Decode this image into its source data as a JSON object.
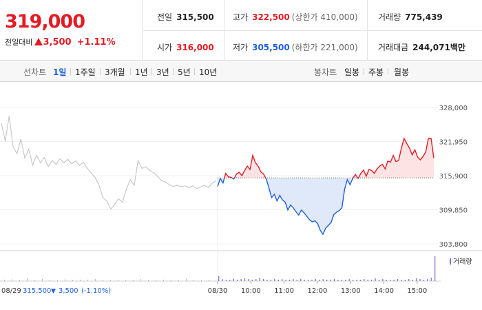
{
  "summary": {
    "price": "319,000",
    "change_label": "전일대비",
    "change_amount": "3,500",
    "change_pct": "+1.11%"
  },
  "stats": {
    "prev_close": {
      "label": "전일",
      "value": "315,500"
    },
    "high": {
      "label": "고가",
      "value": "322,500",
      "limit": "(상한가 410,000)"
    },
    "volume": {
      "label": "거래량",
      "value": "775,439"
    },
    "open": {
      "label": "시가",
      "value": "316,000"
    },
    "low": {
      "label": "저가",
      "value": "305,500",
      "limit": "(하한가 221,000)"
    },
    "trade_value": {
      "label": "거래대금",
      "value": "244,071",
      "unit": "백만"
    }
  },
  "tabs": {
    "line_chart_label": "선차트",
    "ranges": [
      "1일",
      "1주일",
      "3개월",
      "1년",
      "3년",
      "5년",
      "10년"
    ],
    "active_range": "1일",
    "candle_chart_label": "봉차트",
    "candles": [
      "일봉",
      "주봉",
      "월봉"
    ]
  },
  "chart_data": {
    "type": "line",
    "y_ticks": [
      "328,000",
      "321,950",
      "315,900",
      "309,850",
      "303,800"
    ],
    "ylim": [
      303800,
      328000
    ],
    "baseline": 315500,
    "x_ticks": [
      "08/30",
      "10:00",
      "11:00",
      "12:00",
      "13:00",
      "14:00",
      "15:00"
    ],
    "prev_day_label": "08/29",
    "prev_day_close": "315,500",
    "prev_day_change": "3,500",
    "prev_day_pct": "(-1.10%)",
    "volume_legend": "거래량",
    "prev_day_series": [
      325200,
      322000,
      326500,
      321000,
      319800,
      322400,
      319000,
      320600,
      317800,
      319500,
      318200,
      319100,
      317500,
      318600,
      317900,
      318900,
      318200,
      318800,
      318000,
      318500,
      317700,
      318300,
      317200,
      316400,
      315600,
      314200,
      312000,
      311400,
      310000,
      310800,
      311800,
      311200,
      313500,
      315200,
      314200,
      318600,
      317200,
      317500,
      316800,
      316400,
      315800,
      315000,
      314800,
      314300,
      314000,
      314200,
      313900,
      314100,
      313800,
      314100,
      313600,
      313900,
      314200,
      313800,
      314600,
      315000
    ],
    "today_series": [
      314000,
      315400,
      314600,
      316300,
      315700,
      315600,
      315300,
      316200,
      316500,
      315900,
      316800,
      317600,
      317000,
      319500,
      318200,
      317600,
      316600,
      316200,
      315300,
      313700,
      312000,
      312600,
      311400,
      312400,
      311600,
      311200,
      309800,
      310700,
      310200,
      309500,
      308900,
      309800,
      309300,
      308700,
      308100,
      307700,
      307900,
      307400,
      306200,
      305500,
      306600,
      307100,
      307600,
      309000,
      309400,
      309700,
      310200,
      313500,
      315200,
      314300,
      315400,
      316100,
      315400,
      316300,
      316900,
      315800,
      317000,
      316800,
      316300,
      317100,
      317600,
      317900,
      317100,
      318500,
      318300,
      319500,
      318400,
      318600,
      320800,
      322500,
      321600,
      320800,
      319600,
      320500,
      319200,
      318700,
      319300,
      320100,
      322500,
      322500,
      319000
    ],
    "volume_bars_prev": [
      2,
      3,
      2,
      4,
      2,
      3,
      2,
      2,
      3,
      2,
      2,
      2,
      3,
      2,
      2,
      2,
      2,
      2,
      3,
      2,
      2,
      2,
      2,
      2,
      3,
      2,
      2,
      2
    ],
    "volume_bars_today": [
      7,
      3,
      2,
      2,
      3,
      2,
      3,
      4,
      3,
      2,
      3,
      5,
      3,
      2,
      2,
      3,
      2,
      3,
      2,
      2,
      3,
      2,
      3,
      2,
      2,
      2,
      3,
      2,
      3,
      2,
      2,
      3,
      2,
      2,
      2,
      3,
      2,
      2,
      2,
      3,
      2,
      2,
      4,
      2,
      3,
      2,
      2,
      2,
      3,
      2,
      2,
      3,
      2,
      4,
      3,
      2,
      3,
      5,
      36
    ],
    "colors": {
      "up": "#e31b23",
      "down": "#1f5fd8",
      "prev": "#c8c8c8",
      "fill_up": "#fde3e3",
      "fill_down": "#dfe9f9",
      "volume": "#8b74c9"
    }
  }
}
